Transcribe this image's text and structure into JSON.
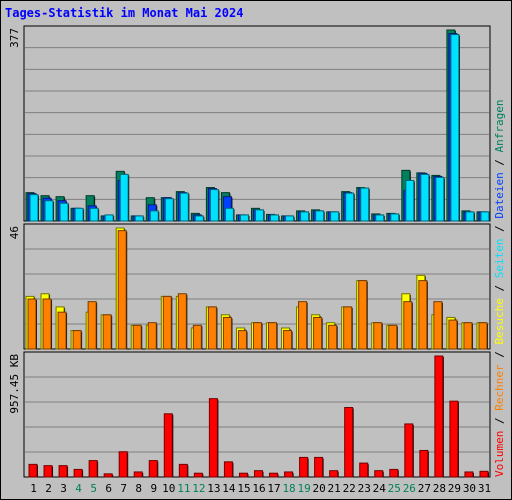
{
  "chart_data": {
    "type": "bar",
    "title": "Tages-Statistik im Monat Mai 2024",
    "x": [
      "1",
      "2",
      "3",
      "4",
      "5",
      "6",
      "7",
      "8",
      "9",
      "10",
      "11",
      "12",
      "13",
      "14",
      "15",
      "16",
      "17",
      "18",
      "19",
      "20",
      "21",
      "22",
      "23",
      "24",
      "25",
      "26",
      "27",
      "28",
      "29",
      "30",
      "31"
    ],
    "weekend_days": [
      "4",
      "5",
      "11",
      "12",
      "18",
      "19",
      "25",
      "26"
    ],
    "colors": {
      "anfragen": "#00805c",
      "dateien": "#0040ff",
      "seiten": "#00e0ff",
      "besuche": "#ffff00",
      "rechner": "#ff8000",
      "volumen": "#ff0000",
      "weekend_label": "#00805c"
    },
    "panels": [
      {
        "id": "top",
        "y_label": "377",
        "ylim": [
          0,
          377
        ],
        "series": [
          {
            "name": "Anfragen",
            "key": "anfragen",
            "values": [
              56,
              50,
              48,
              25,
              50,
              10,
              98,
              10,
              46,
              46,
              58,
              15,
              66,
              56,
              12,
              25,
              13,
              10,
              20,
              22,
              18,
              58,
              66,
              14,
              15,
              100,
              95,
              90,
              377,
              20,
              18
            ]
          },
          {
            "name": "Dateien",
            "key": "dateien",
            "values": [
              54,
              45,
              40,
              25,
              30,
              10,
              80,
              10,
              32,
              46,
              56,
              12,
              64,
              48,
              12,
              22,
              12,
              10,
              18,
              20,
              18,
              56,
              64,
              12,
              14,
              60,
              94,
              88,
              370,
              18,
              18
            ]
          },
          {
            "name": "Seiten",
            "key": "seiten",
            "values": [
              52,
              40,
              35,
              25,
              25,
              12,
              92,
              10,
              20,
              44,
              55,
              10,
              62,
              25,
              12,
              22,
              12,
              10,
              18,
              20,
              18,
              55,
              65,
              12,
              14,
              80,
              92,
              86,
              368,
              18,
              18
            ]
          }
        ]
      },
      {
        "id": "middle",
        "y_label": "46",
        "ylim": [
          0,
          46
        ],
        "series": [
          {
            "name": "Besuche",
            "key": "besuche",
            "values": [
              20,
              21,
              16,
              7,
              14,
              13,
              46,
              9,
              9,
              20,
              20,
              8,
              16,
              13,
              8,
              10,
              10,
              8,
              16,
              13,
              10,
              16,
              26,
              10,
              9,
              21,
              28,
              13,
              12,
              10,
              10
            ]
          },
          {
            "name": "Rechner",
            "key": "rechner",
            "values": [
              19,
              19,
              14,
              7,
              18,
              13,
              45,
              9,
              10,
              20,
              21,
              9,
              16,
              12,
              7,
              10,
              10,
              7,
              18,
              12,
              9,
              16,
              26,
              10,
              9,
              18,
              26,
              18,
              11,
              10,
              10
            ]
          }
        ]
      },
      {
        "id": "bottom",
        "y_label": "957.45 KB",
        "ylim": [
          0,
          957.45
        ],
        "series": [
          {
            "name": "Volumen",
            "key": "volumen",
            "values": [
              100,
              90,
              90,
              60,
              130,
              25,
              200,
              40,
              130,
              500,
              100,
              30,
              620,
              120,
              30,
              50,
              30,
              40,
              155,
              155,
              50,
              550,
              110,
              50,
              60,
              420,
              210,
              957.45,
              600,
              40,
              45
            ]
          }
        ]
      }
    ],
    "legend": [
      {
        "label": "Anfragen",
        "key": "anfragen"
      },
      {
        "label": "Dateien",
        "key": "dateien"
      },
      {
        "label": "Seiten",
        "key": "seiten"
      },
      {
        "label": "Besuche",
        "key": "besuche"
      },
      {
        "label": "Rechner",
        "key": "rechner"
      },
      {
        "label": "Volumen",
        "key": "volumen"
      }
    ],
    "legend_separator": "/",
    "legend_placement": "right",
    "grid": true
  }
}
